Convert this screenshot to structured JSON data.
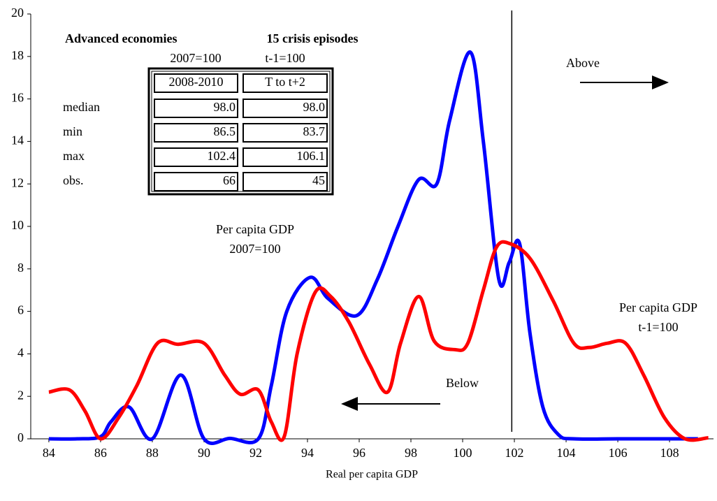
{
  "chart_data": {
    "type": "line",
    "xlabel": "Real per capita GDP",
    "xlim": [
      83.3,
      109.7
    ],
    "xticks": [
      84,
      86,
      88,
      90,
      92,
      94,
      96,
      98,
      100,
      102,
      104,
      106,
      108
    ],
    "ylim": [
      0,
      20
    ],
    "yticks": [
      0,
      2,
      4,
      6,
      8,
      10,
      12,
      14,
      16,
      18,
      20
    ],
    "grid": false,
    "threshold_x": 101.9,
    "series": [
      {
        "color": "#0000ff",
        "x": [
          84,
          85.1,
          86,
          86.4,
          87.1,
          88,
          89.1,
          90,
          91,
          92.1,
          92.6,
          93.2,
          94.1,
          94.8,
          95.9,
          96.7,
          97.5,
          98.3,
          99,
          99.5,
          100.3,
          100.8,
          101.4,
          101.8,
          102.2,
          102.6,
          103.1,
          103.7,
          104.3,
          106,
          108,
          109.1
        ],
        "values": [
          0,
          0,
          0.1,
          0.8,
          1.5,
          0,
          3.0,
          0,
          0.02,
          0,
          2.5,
          6.0,
          7.6,
          6.6,
          5.8,
          7.5,
          10.0,
          12.2,
          12.0,
          15,
          18.2,
          14,
          7.5,
          8.3,
          9.2,
          5,
          1.5,
          0.2,
          0,
          0,
          0,
          0
        ]
      },
      {
        "color": "#ff0000",
        "x": [
          84,
          84.8,
          85.4,
          86,
          86.7,
          87.4,
          88.2,
          89,
          90,
          90.8,
          91.4,
          92.1,
          92.6,
          93.1,
          93.6,
          94.3,
          94.9,
          95.6,
          96.4,
          97.1,
          97.6,
          98.3,
          98.9,
          99.7,
          100.2,
          100.8,
          101.3,
          101.8,
          102.6,
          103.5,
          104.3,
          104.9,
          105.6,
          106.3,
          107,
          107.8,
          108.6,
          109.5
        ],
        "values": [
          2.2,
          2.3,
          1.3,
          0,
          1.0,
          2.5,
          4.5,
          4.45,
          4.5,
          3,
          2.1,
          2.3,
          0.8,
          0.1,
          4,
          6.9,
          6.7,
          5.5,
          3.5,
          2.2,
          4.5,
          6.7,
          4.6,
          4.2,
          4.5,
          7,
          9.0,
          9.2,
          8.5,
          6.5,
          4.5,
          4.3,
          4.5,
          4.5,
          3,
          1,
          0,
          0.05
        ]
      }
    ],
    "annotations": {
      "blue_label": [
        "Per capita GDP",
        "2007=100"
      ],
      "red_label": [
        "Per capita GDP",
        "t-1=100"
      ],
      "above": "Above",
      "below": "Below"
    },
    "inset": {
      "title_left": "Advanced economies",
      "title_right": "15 crisis episodes",
      "sub_left": "2007=100",
      "sub_right": "t-1=100",
      "col_headers": [
        "2008-2010",
        "T to t+2"
      ],
      "rows": [
        {
          "label": "median",
          "values": [
            "98.0",
            "98.0"
          ]
        },
        {
          "label": "min",
          "values": [
            "86.5",
            "83.7"
          ]
        },
        {
          "label": "max",
          "values": [
            "102.4",
            "106.1"
          ]
        },
        {
          "label": "obs.",
          "values": [
            "66",
            "45"
          ]
        }
      ]
    }
  }
}
